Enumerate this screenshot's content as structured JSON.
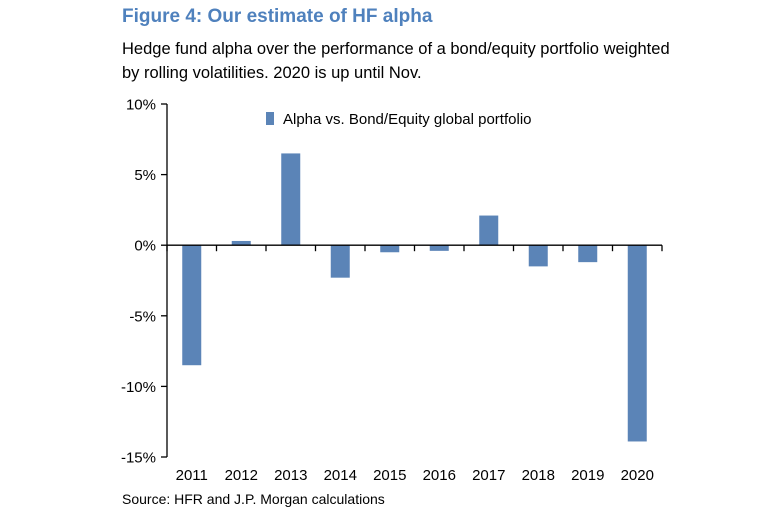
{
  "figure": {
    "title": "Figure 4: Our estimate of HF alpha",
    "subtitle": "Hedge fund alpha over the performance of a bond/equity portfolio weighted by rolling volatilities. 2020 is up until Nov.",
    "source": "Source: HFR and J.P. Morgan calculations"
  },
  "colors": {
    "bar": "#5b84b7",
    "title": "#4f81bd",
    "axis": "#000000"
  },
  "chart_data": {
    "type": "bar",
    "title": "Figure 4: Our estimate of HF alpha",
    "xlabel": "",
    "ylabel": "",
    "categories": [
      "2011",
      "2012",
      "2013",
      "2014",
      "2015",
      "2016",
      "2017",
      "2018",
      "2019",
      "2020"
    ],
    "series": [
      {
        "name": "Alpha vs. Bond/Equity global portfolio",
        "values": [
          -8.5,
          0.3,
          6.5,
          -2.3,
          -0.5,
          -0.4,
          2.1,
          -1.5,
          -1.2,
          -13.9
        ]
      }
    ],
    "ylim": [
      -15,
      10
    ],
    "yticks": [
      10,
      5,
      0,
      -5,
      -10,
      -15
    ],
    "ytick_labels": [
      "10%",
      "5%",
      "0%",
      "-5%",
      "-10%",
      "-15%"
    ],
    "grid": false,
    "legend": "top-center"
  }
}
